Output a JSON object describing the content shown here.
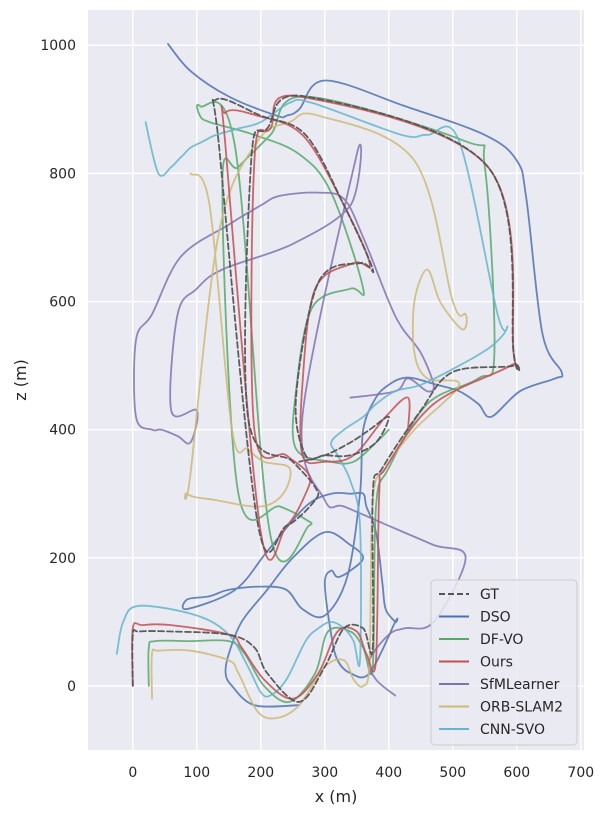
{
  "chart_data": {
    "type": "line",
    "xlabel": "x (m)",
    "ylabel": "z (m)",
    "xlim": [
      -70,
      705
    ],
    "ylim": [
      -100,
      1055
    ],
    "x_ticks": [
      0,
      100,
      200,
      300,
      400,
      500,
      600,
      700
    ],
    "y_ticks": [
      0,
      200,
      400,
      600,
      800,
      1000
    ],
    "grid": true,
    "legend_position": "bottom-right",
    "series": [
      {
        "name": "GT",
        "color": "#555555",
        "dashed": true,
        "x": [
          0,
          0,
          10,
          60,
          150,
          190,
          210,
          260,
          300,
          330,
          360,
          375,
          375,
          390,
          450,
          500,
          595,
          595,
          555,
          270,
          210,
          185,
          180,
          250,
          285,
          285,
          240,
          195,
          135,
          130,
          200,
          270,
          330,
          375,
          355,
          290,
          255,
          270,
          300,
          340,
          380,
          400,
          370,
          340,
          300,
          260
        ],
        "y": [
          0,
          80,
          85,
          85,
          80,
          60,
          20,
          -25,
          30,
          90,
          90,
          60,
          300,
          340,
          430,
          490,
          500,
          520,
          810,
          920,
          870,
          820,
          420,
          350,
          310,
          290,
          250,
          255,
          840,
          915,
          890,
          860,
          750,
          650,
          660,
          630,
          450,
          360,
          360,
          360,
          380,
          420,
          400,
          380,
          360,
          350
        ]
      },
      {
        "name": "DSO",
        "color": "#4c72b0",
        "x": [
          55,
          90,
          150,
          225,
          240,
          260,
          300,
          425,
          550,
          600,
          615,
          640,
          670,
          660,
          605,
          560,
          540,
          510,
          475,
          440,
          420,
          400,
          380,
          360,
          355,
          335,
          300,
          265,
          240,
          200,
          150,
          120,
          85,
          85,
          160,
          210,
          270,
          310,
          340,
          360,
          365,
          380,
          390,
          395,
          410,
          410,
          370,
          340,
          320,
          310,
          300,
          310,
          320,
          340,
          360,
          340,
          300,
          250,
          210,
          170,
          150,
          145,
          155,
          190,
          260
        ],
        "y": [
          1002,
          960,
          920,
          890,
          890,
          900,
          945,
          905,
          860,
          820,
          760,
          550,
          490,
          480,
          460,
          420,
          440,
          460,
          470,
          480,
          480,
          470,
          450,
          400,
          300,
          170,
          110,
          120,
          150,
          155,
          150,
          140,
          135,
          120,
          150,
          210,
          280,
          300,
          300,
          300,
          280,
          240,
          160,
          120,
          100,
          100,
          20,
          20,
          40,
          80,
          160,
          180,
          170,
          180,
          200,
          220,
          240,
          200,
          150,
          100,
          50,
          20,
          0,
          -30,
          -30
        ]
      },
      {
        "name": "DF-VO",
        "color": "#55a868",
        "x": [
          25,
          25,
          35,
          90,
          150,
          175,
          205,
          245,
          285,
          305,
          340,
          360,
          375,
          380,
          400,
          460,
          540,
          565,
          550,
          520,
          270,
          215,
          165,
          140,
          165,
          230,
          270,
          275,
          215,
          160,
          105,
          105,
          120,
          190,
          260,
          310,
          360,
          340,
          280,
          255,
          255,
          310,
          345,
          380,
          400
        ],
        "y": [
          0,
          60,
          70,
          70,
          70,
          50,
          0,
          -25,
          20,
          85,
          85,
          60,
          30,
          280,
          340,
          440,
          480,
          520,
          810,
          850,
          920,
          860,
          810,
          780,
          300,
          280,
          260,
          250,
          235,
          840,
          905,
          890,
          880,
          860,
          830,
          770,
          620,
          620,
          590,
          460,
          370,
          350,
          350,
          380,
          400
        ]
      },
      {
        "name": "Ours",
        "color": "#c44e52",
        "x": [
          0,
          0,
          15,
          60,
          150,
          170,
          205,
          250,
          290,
          320,
          350,
          365,
          380,
          385,
          395,
          470,
          590,
          595,
          555,
          260,
          215,
          190,
          190,
          240,
          275,
          270,
          240,
          200,
          145,
          145,
          195,
          265,
          325,
          370,
          345,
          285,
          265,
          265,
          300,
          345,
          395,
          430,
          430
        ],
        "y": [
          0,
          90,
          95,
          95,
          80,
          60,
          10,
          -20,
          20,
          85,
          85,
          50,
          40,
          300,
          340,
          440,
          500,
          520,
          810,
          920,
          870,
          820,
          400,
          360,
          330,
          300,
          250,
          240,
          840,
          895,
          890,
          860,
          760,
          660,
          660,
          620,
          470,
          360,
          350,
          360,
          420,
          450,
          400
        ]
      },
      {
        "name": "SfMLearner",
        "color": "#8172b2",
        "x": [
          410,
          380,
          370,
          400,
          425,
          470,
          520,
          470,
          400,
          330,
          300,
          265,
          350,
          340,
          250,
          140,
          100,
          70,
          60,
          100,
          90,
          70,
          45,
          30,
          5,
          5,
          30,
          75,
          150,
          200,
          230,
          290,
          330,
          360,
          400,
          420,
          450,
          470,
          460,
          430,
          410,
          340
        ],
        "y": [
          -15,
          10,
          40,
          80,
          90,
          100,
          200,
          220,
          250,
          280,
          290,
          420,
          830,
          750,
          690,
          650,
          620,
          580,
          430,
          430,
          380,
          390,
          400,
          400,
          420,
          540,
          580,
          670,
          720,
          750,
          765,
          770,
          760,
          700,
          600,
          560,
          520,
          470,
          460,
          480,
          460,
          450
        ]
      },
      {
        "name": "ORB-SLAM2",
        "color": "#ccb974",
        "x": [
          30,
          30,
          40,
          90,
          150,
          165,
          195,
          225,
          260,
          300,
          330,
          345,
          360,
          370,
          375,
          395,
          440,
          510,
          460,
          440,
          440,
          460,
          480,
          510,
          520,
          520,
          500,
          440,
          290,
          245,
          195,
          135,
          90,
          85,
          130,
          200,
          235,
          245,
          205,
          180,
          155,
          120,
          90
        ],
        "y": [
          -20,
          50,
          55,
          55,
          40,
          20,
          -40,
          -50,
          -30,
          30,
          40,
          10,
          0,
          40,
          290,
          340,
          400,
          470,
          480,
          520,
          600,
          650,
          600,
          560,
          560,
          580,
          600,
          820,
          890,
          880,
          850,
          710,
          330,
          300,
          290,
          280,
          300,
          340,
          350,
          370,
          400,
          750,
          800
        ]
      },
      {
        "name": "CNN-SVO",
        "color": "#64b5cd",
        "x": [
          -25,
          -15,
          10,
          100,
          150,
          180,
          200,
          215,
          240,
          270,
          290,
          310,
          330,
          345,
          355,
          355,
          340,
          320,
          310,
          330,
          360,
          380,
          410,
          450,
          510,
          560,
          585,
          570,
          510,
          460,
          420,
          280,
          245,
          200,
          165,
          130,
          110,
          90,
          80,
          70,
          60,
          40,
          20
        ],
        "y": [
          50,
          100,
          125,
          110,
          80,
          30,
          -10,
          -15,
          10,
          70,
          90,
          100,
          90,
          70,
          40,
          250,
          320,
          360,
          380,
          400,
          420,
          440,
          460,
          470,
          500,
          530,
          560,
          580,
          850,
          860,
          860,
          910,
          910,
          880,
          870,
          860,
          850,
          840,
          830,
          820,
          810,
          800,
          880
        ]
      }
    ]
  }
}
